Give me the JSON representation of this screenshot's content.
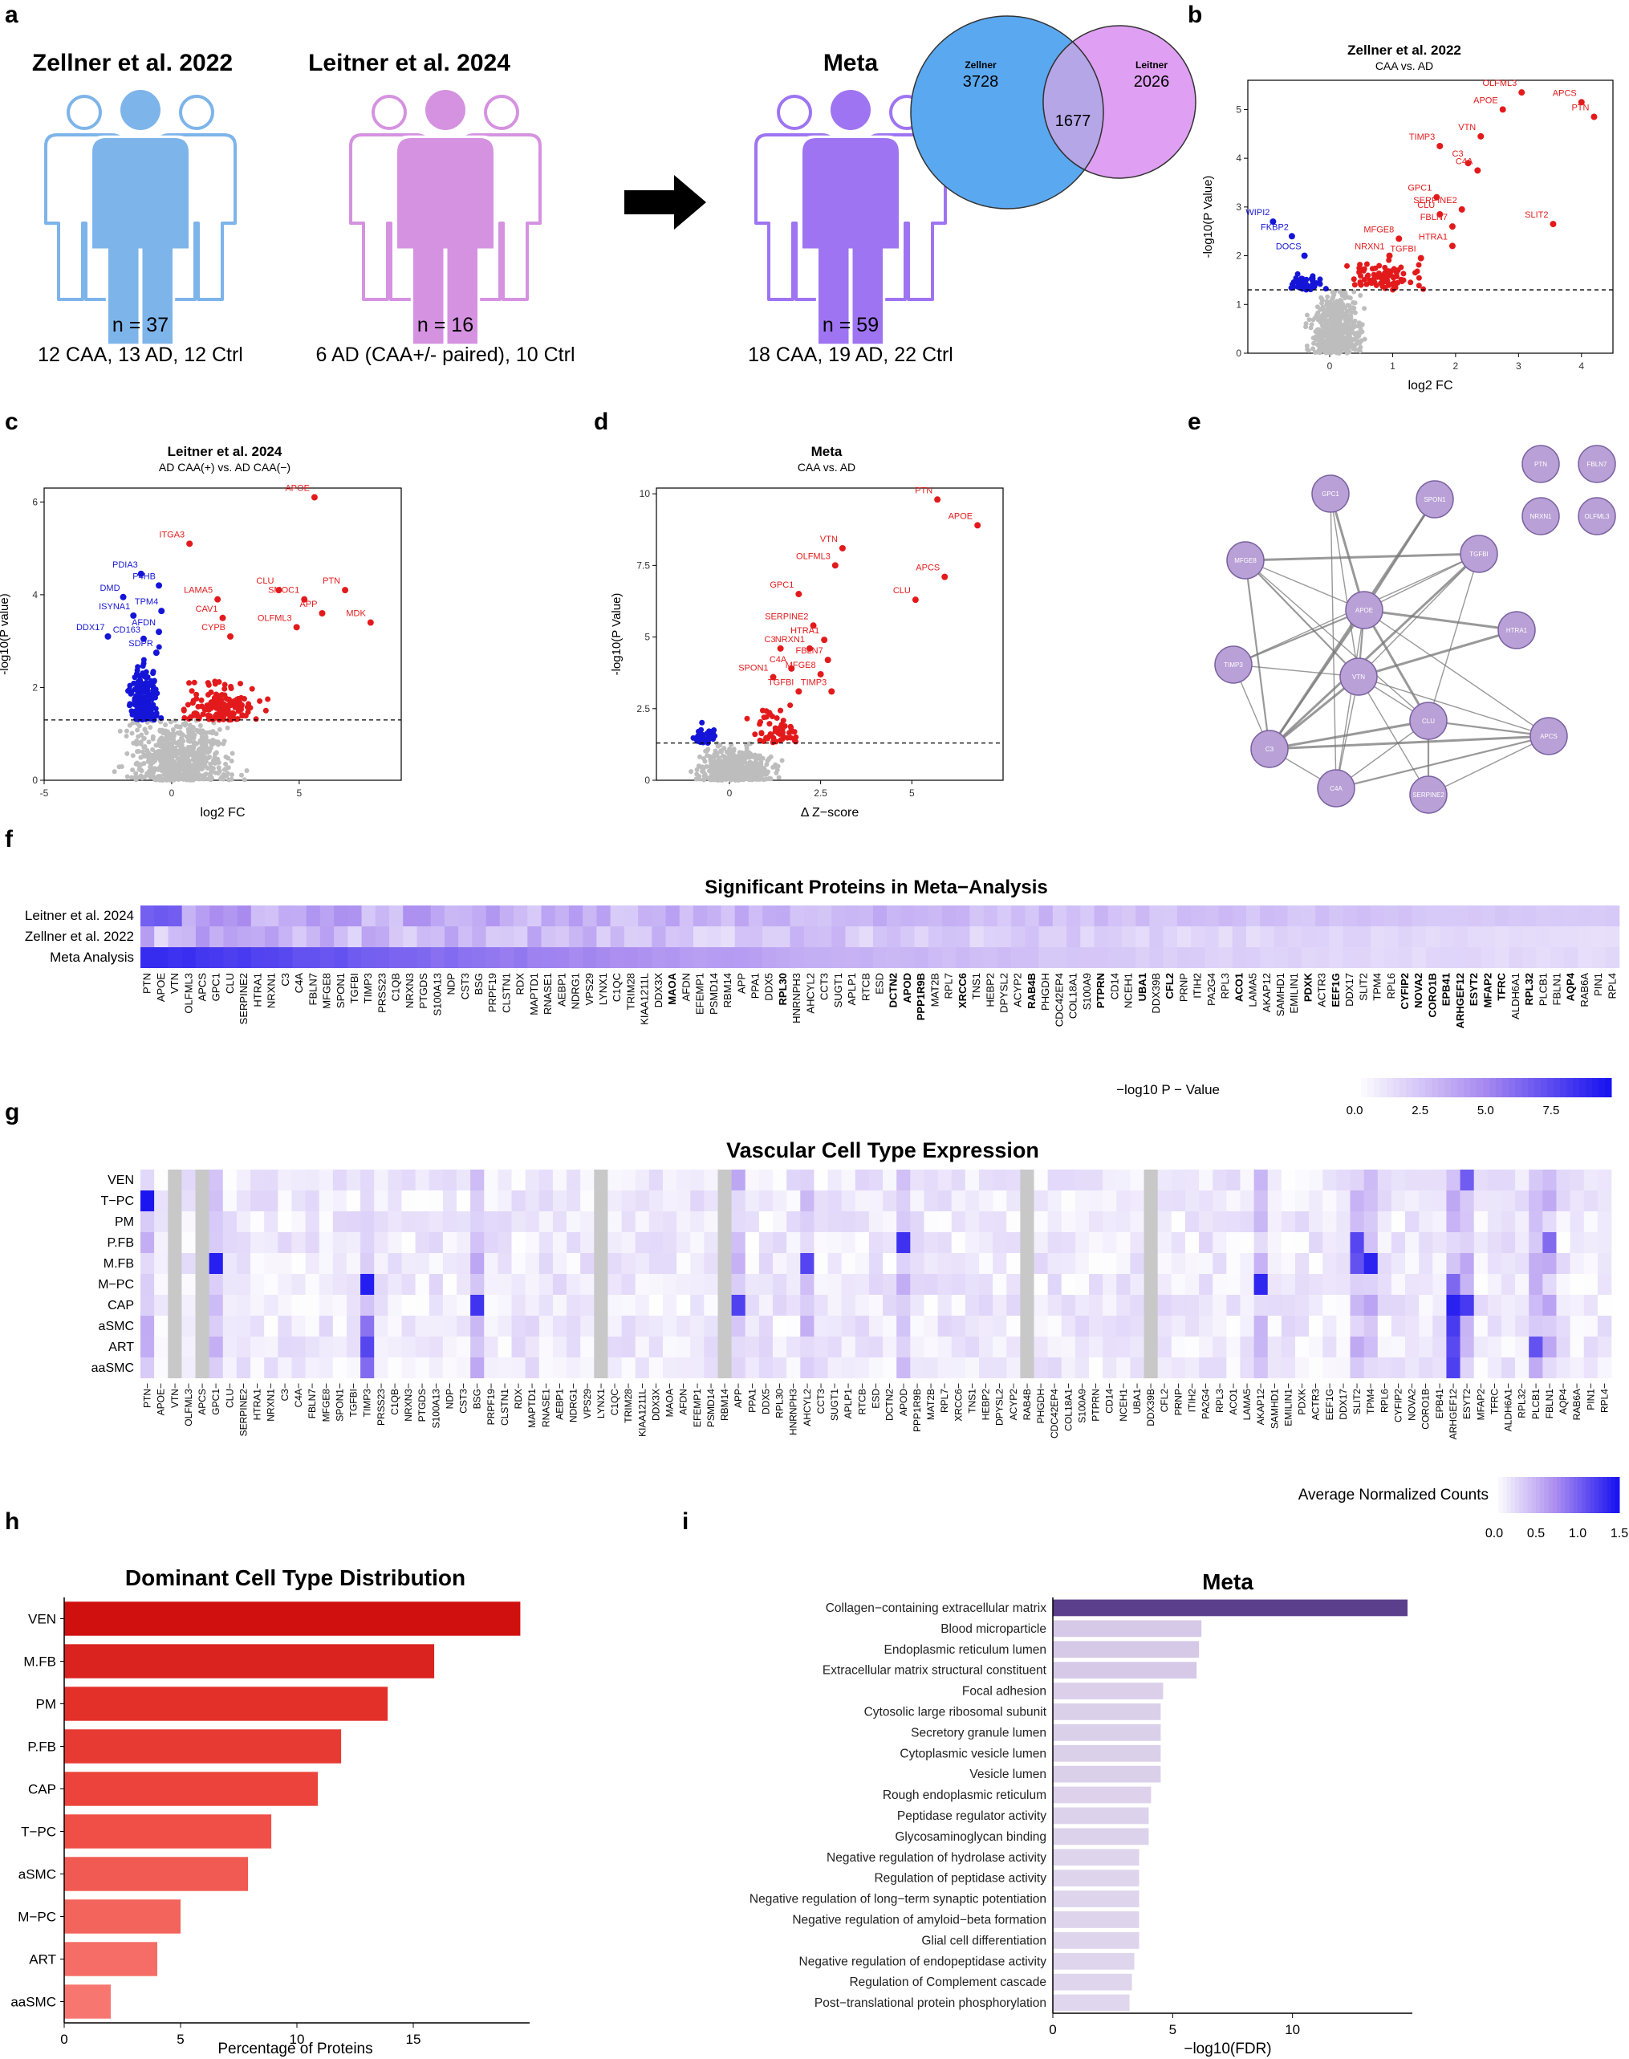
{
  "panel_letters": [
    "a",
    "b",
    "c",
    "d",
    "e",
    "f",
    "g",
    "h",
    "i"
  ],
  "panel_a": {
    "cohorts": [
      {
        "title": "Zellner et al. 2022",
        "n": "n = 37",
        "breakdown": "12 CAA, 13 AD, 12 Ctrl",
        "color": "#7db4ea"
      },
      {
        "title": "Leitner et al. 2024",
        "n": "n = 16",
        "breakdown": "6 AD (CAA+/- paired), 10 Ctrl",
        "color": "#d592e0"
      },
      {
        "title": "Meta",
        "n": "n = 59",
        "breakdown": "18 CAA, 19 AD, 22 Ctrl",
        "color": "#9e74f2"
      }
    ],
    "venn": {
      "left_label": "Zellner",
      "left_count": "3728",
      "overlap": "1677",
      "right_label": "Leitner",
      "right_count": "2026"
    }
  },
  "chart_data": [
    {
      "id": "b",
      "type": "scatter",
      "title": "Zellner et al. 2022",
      "subtitle": "CAA vs. AD",
      "xlabel": "log2 FC",
      "ylabel": "-log10(P Value)",
      "xlim": [
        -1.3,
        4.5
      ],
      "ylim": [
        0,
        5.6
      ],
      "xticks": [
        0,
        1,
        2,
        3,
        4
      ],
      "yticks": [
        0,
        1,
        2,
        3,
        4,
        5
      ],
      "threshold": 1.3,
      "points": [
        {
          "label": "APCS",
          "x": 4.0,
          "y": 5.15,
          "side": "up"
        },
        {
          "label": "OLFML3",
          "x": 3.05,
          "y": 5.35,
          "side": "up"
        },
        {
          "label": "PTN",
          "x": 4.2,
          "y": 4.85,
          "side": "up"
        },
        {
          "label": "APOE",
          "x": 2.75,
          "y": 5.0,
          "side": "up"
        },
        {
          "label": "VTN",
          "x": 2.4,
          "y": 4.45,
          "side": "up"
        },
        {
          "label": "TIMP3",
          "x": 1.75,
          "y": 4.25,
          "side": "up"
        },
        {
          "label": "C3",
          "x": 2.2,
          "y": 3.9,
          "side": "up"
        },
        {
          "label": "C4A",
          "x": 2.35,
          "y": 3.75,
          "side": "up"
        },
        {
          "label": "GPC1",
          "x": 1.7,
          "y": 3.2,
          "side": "up"
        },
        {
          "label": "CLU",
          "x": 1.75,
          "y": 2.85,
          "side": "up"
        },
        {
          "label": "SERPINE2",
          "x": 2.1,
          "y": 2.95,
          "side": "up"
        },
        {
          "label": "MFGE8",
          "x": 1.1,
          "y": 2.35,
          "side": "up"
        },
        {
          "label": "FBLN7",
          "x": 1.95,
          "y": 2.6,
          "side": "up"
        },
        {
          "label": "NRXN1",
          "x": 0.95,
          "y": 2.0,
          "side": "up"
        },
        {
          "label": "TGFBI",
          "x": 1.45,
          "y": 1.95,
          "side": "up"
        },
        {
          "label": "HTRA1",
          "x": 1.95,
          "y": 2.2,
          "side": "up"
        },
        {
          "label": "SLIT2",
          "x": 3.55,
          "y": 2.65,
          "side": "up"
        },
        {
          "label": "WIPI2",
          "x": -0.9,
          "y": 2.7,
          "side": "down"
        },
        {
          "label": "FKBP2",
          "x": -0.6,
          "y": 2.4,
          "side": "down"
        },
        {
          "label": "DOCS",
          "x": -0.4,
          "y": 2.0,
          "side": "down"
        }
      ]
    },
    {
      "id": "c",
      "type": "scatter",
      "title": "Leitner et al. 2024",
      "subtitle": "AD CAA(+) vs. AD CAA(−)",
      "xlabel": "log2 FC",
      "ylabel": "-log10(P value)",
      "xlim": [
        -5,
        9
      ],
      "ylim": [
        0,
        6.3
      ],
      "xticks": [
        -5,
        0,
        5
      ],
      "yticks": [
        0,
        2,
        4,
        6
      ],
      "threshold": 1.3,
      "points": [
        {
          "label": "APOE",
          "x": 5.6,
          "y": 6.1,
          "side": "up"
        },
        {
          "label": "ITGA3",
          "x": 0.7,
          "y": 5.1,
          "side": "up"
        },
        {
          "label": "LAMA5",
          "x": 1.8,
          "y": 3.9,
          "side": "up"
        },
        {
          "label": "CLU",
          "x": 4.2,
          "y": 4.1,
          "side": "up"
        },
        {
          "label": "SMOC1",
          "x": 5.2,
          "y": 3.9,
          "side": "up"
        },
        {
          "label": "PTN",
          "x": 6.8,
          "y": 4.1,
          "side": "up"
        },
        {
          "label": "CAV1",
          "x": 2.0,
          "y": 3.5,
          "side": "up"
        },
        {
          "label": "APP",
          "x": 5.9,
          "y": 3.6,
          "side": "up"
        },
        {
          "label": "OLFML3",
          "x": 4.9,
          "y": 3.3,
          "side": "up"
        },
        {
          "label": "MDK",
          "x": 7.8,
          "y": 3.4,
          "side": "up"
        },
        {
          "label": "CYPB",
          "x": 2.3,
          "y": 3.1,
          "side": "up"
        },
        {
          "label": "PDIA3",
          "x": -1.2,
          "y": 4.45,
          "side": "down"
        },
        {
          "label": "P4HB",
          "x": -0.5,
          "y": 4.2,
          "side": "down"
        },
        {
          "label": "DMD",
          "x": -1.9,
          "y": 3.95,
          "side": "down"
        },
        {
          "label": "TPM4",
          "x": -0.4,
          "y": 3.65,
          "side": "down"
        },
        {
          "label": "ISYNA1",
          "x": -1.5,
          "y": 3.55,
          "side": "down"
        },
        {
          "label": "AFDN",
          "x": -0.5,
          "y": 3.2,
          "side": "down"
        },
        {
          "label": "DDX17",
          "x": -2.5,
          "y": 3.1,
          "side": "down"
        },
        {
          "label": "CD163",
          "x": -1.1,
          "y": 3.05,
          "side": "down"
        },
        {
          "label": "SDPR",
          "x": -0.6,
          "y": 2.75,
          "side": "down"
        }
      ]
    },
    {
      "id": "d",
      "type": "scatter",
      "title": "Meta",
      "subtitle": "CAA vs. AD",
      "xlabel": "Δ Z−score",
      "ylabel": "-log10(P Value)",
      "xlim": [
        -2,
        7.5
      ],
      "ylim": [
        0,
        10.2
      ],
      "xticks": [
        0,
        2.5,
        5
      ],
      "yticks": [
        0,
        2.5,
        5,
        7.5,
        10
      ],
      "threshold": 1.3,
      "points": [
        {
          "label": "PTN",
          "x": 5.7,
          "y": 9.8,
          "side": "up"
        },
        {
          "label": "APOE",
          "x": 6.8,
          "y": 8.9,
          "side": "up"
        },
        {
          "label": "VTN",
          "x": 3.1,
          "y": 8.1,
          "side": "up"
        },
        {
          "label": "OLFML3",
          "x": 2.9,
          "y": 7.5,
          "side": "up"
        },
        {
          "label": "APCS",
          "x": 5.9,
          "y": 7.1,
          "side": "up"
        },
        {
          "label": "GPC1",
          "x": 1.9,
          "y": 6.5,
          "side": "up"
        },
        {
          "label": "CLU",
          "x": 5.1,
          "y": 6.3,
          "side": "up"
        },
        {
          "label": "SERPINE2",
          "x": 2.3,
          "y": 5.4,
          "side": "up"
        },
        {
          "label": "HTRA1",
          "x": 2.6,
          "y": 4.9,
          "side": "up"
        },
        {
          "label": "C3",
          "x": 1.4,
          "y": 4.6,
          "side": "up"
        },
        {
          "label": "NRXN1",
          "x": 2.2,
          "y": 4.6,
          "side": "up"
        },
        {
          "label": "FBLN7",
          "x": 2.7,
          "y": 4.2,
          "side": "up"
        },
        {
          "label": "C4A",
          "x": 1.7,
          "y": 3.9,
          "side": "up"
        },
        {
          "label": "SPON1",
          "x": 1.2,
          "y": 3.6,
          "side": "up"
        },
        {
          "label": "MFGE8",
          "x": 2.5,
          "y": 3.7,
          "side": "up"
        },
        {
          "label": "TGFBI",
          "x": 1.9,
          "y": 3.1,
          "side": "up"
        },
        {
          "label": "TIMP3",
          "x": 2.8,
          "y": 3.1,
          "side": "up"
        }
      ]
    },
    {
      "id": "f",
      "type": "heatmap",
      "title": "Significant Proteins in Meta−Analysis",
      "rows": [
        "Leitner et al. 2024",
        "Zellner et al. 2022",
        "Meta Analysis"
      ],
      "columns": [
        "PTN",
        "APOE",
        "VTN",
        "OLFML3",
        "APCS",
        "GPC1",
        "CLU",
        "SERPINE2",
        "HTRA1",
        "NRXN1",
        "C3",
        "C4A",
        "FBLN7",
        "MFGE8",
        "SPON1",
        "TGFBI",
        "TIMP3",
        "PRSS23",
        "C1QB",
        "NRXN3",
        "PTGDS",
        "S100A13",
        "NDP",
        "CST3",
        "BSG",
        "PRPF19",
        "CLSTN1",
        "RDX",
        "MAPTD1",
        "RNASE1",
        "AEBP1",
        "NDRG1",
        "VPS29",
        "LYNX1",
        "C1QC",
        "TRIM28",
        "KIAA1211L",
        "DDX3X",
        "MAOA",
        "AFDN",
        "EFEMP1",
        "PSMD14",
        "RBM14",
        "APP",
        "PPA1",
        "DDX5",
        "RPL30",
        "HNRNPH3",
        "AHCYL2",
        "CCT3",
        "SUGT1",
        "APLP1",
        "RTCB",
        "ESD",
        "DCTN2",
        "APOD",
        "PPP1R9B",
        "MAT2B",
        "RPL7",
        "XRCC6",
        "TNS1",
        "HEBP2",
        "DPYSL2",
        "ACYP2",
        "RAB4B",
        "PHGDH",
        "CDC42EP4",
        "COL18A1",
        "S100A9",
        "PTPRN",
        "CD14",
        "NCEH1",
        "UBA1",
        "DDX39B",
        "CFL2",
        "PRNP",
        "ITIH2",
        "PA2G4",
        "RPL3",
        "ACO1",
        "LAMA5",
        "AKAP12",
        "SAMHD1",
        "EMILIN1",
        "PDXK",
        "ACTR3",
        "EEF1G",
        "DDX17",
        "SLIT2",
        "TPM4",
        "RPL6",
        "CYFIP2",
        "NOVA2",
        "CORO1B",
        "EPB41",
        "ARHGEF12",
        "ESYT2",
        "MFAP2",
        "TFRC",
        "ALDH6A1",
        "RPL32",
        "PLCB1",
        "FBLN1",
        "AQP4",
        "RAB6A",
        "PIN1",
        "RPL4"
      ],
      "bold_columns": [
        "MAOA",
        "RPL30",
        "DCTN2",
        "APOD",
        "PPP1R9B",
        "XRCC6",
        "RAB4B",
        "PTPRN",
        "UBA1",
        "CFL2",
        "ACO1",
        "PDXK",
        "EEF1G",
        "CYFIP2",
        "NOVA2",
        "CORO1B",
        "EPB41",
        "ARHGEF12",
        "ESYT2",
        "MFAP2",
        "TFRC",
        "RPL32",
        "AQP4"
      ],
      "legend_title": "−log10 P − Value",
      "legend_ticks": [
        "0.0",
        "2.5",
        "5.0",
        "7.5"
      ],
      "range": [
        0,
        9.8
      ]
    },
    {
      "id": "g",
      "type": "heatmap",
      "title": "Vascular Cell Type Expression",
      "rows": [
        "VEN",
        "T−PC",
        "PM",
        "P.FB",
        "M.FB",
        "M−PC",
        "CAP",
        "aSMC",
        "ART",
        "aaSMC"
      ],
      "columns": [
        "PTN",
        "APOE",
        "VTN",
        "OLFML3",
        "APCS",
        "GPC1",
        "CLU",
        "SERPINE2",
        "HTRA1",
        "NRXN1",
        "C3",
        "C4A",
        "FBLN7",
        "MFGE8",
        "SPON1",
        "TGFBI",
        "TIMP3",
        "PRSS23",
        "C1QB",
        "NRXN3",
        "PTGDS",
        "S100A13",
        "NDP",
        "CST3",
        "BSG",
        "PRPF19",
        "CLSTN1",
        "RDX",
        "MAPTD1",
        "RNASE1",
        "AEBP1",
        "NDRG1",
        "VPS29",
        "LYNX1",
        "C1QC",
        "TRIM28",
        "KIAA1211L",
        "DDX3X",
        "MAOA",
        "AFDN",
        "EFEMP1",
        "PSMD14",
        "RBM14",
        "APP",
        "PPA1",
        "DDX5",
        "RPL30",
        "HNRNPH3",
        "AHCYL2",
        "CCT3",
        "SUGT1",
        "APLP1",
        "RTCB",
        "ESD",
        "DCTN2",
        "APOD",
        "PPP1R9B",
        "MAT2B",
        "RPL7",
        "XRCC6",
        "TNS1",
        "HEBP2",
        "DPYSL2",
        "ACYP2",
        "RAB4B",
        "PHGDH",
        "CDC42EP4",
        "COL18A1",
        "S100A9",
        "PTPRN",
        "CD14",
        "NCEH1",
        "UBA1",
        "DDX39B",
        "CFL2",
        "PRNP",
        "ITIH2",
        "PA2G4",
        "RPL3",
        "ACO1",
        "LAMA5",
        "AKAP12",
        "SAMHD1",
        "EMILIN1",
        "PDXK",
        "ACTR3",
        "EEF1G",
        "DDX17",
        "SLIT2",
        "TPM4",
        "RPL6",
        "CYFIP2",
        "NOVA2",
        "CORO1B",
        "EPB41",
        "ARHGEF12",
        "ESYT2",
        "MFAP2",
        "TFRC",
        "ALDH6A1",
        "RPL32",
        "PLCB1",
        "FBLN1",
        "AQP4",
        "RAB6A",
        "PIN1",
        "RPL4"
      ],
      "gray_columns": [
        "VTN",
        "APCS",
        "LYNX1",
        "RBM14",
        "RAB4B",
        "DDX39B"
      ],
      "legend_title": "Average Normalized Counts",
      "legend_ticks": [
        "0.0",
        "0.5",
        "1.0",
        "1.5"
      ],
      "range": [
        0,
        1.5
      ]
    },
    {
      "id": "h",
      "type": "bar",
      "title": "Dominant Cell Type Distribution",
      "orientation": "horizontal",
      "categories": [
        "VEN",
        "M.FB",
        "PM",
        "P.FB",
        "CAP",
        "T−PC",
        "aSMC",
        "M−PC",
        "ART",
        "aaSMC"
      ],
      "values": [
        19.6,
        15.9,
        13.9,
        11.9,
        10.9,
        8.9,
        7.9,
        5.0,
        4.0,
        2.0
      ],
      "xlabel": "Percentage of Proteins",
      "xlim": [
        0,
        20
      ],
      "xticks": [
        "0",
        "5",
        "10",
        "15"
      ]
    },
    {
      "id": "i",
      "type": "bar",
      "title": "Meta",
      "orientation": "horizontal",
      "categories": [
        "Collagen−containing extracellular matrix",
        "Blood microparticle",
        "Endoplasmic reticulum lumen",
        "Extracellular matrix structural constituent",
        "Focal adhesion",
        "Cytosolic large ribosomal subunit",
        "Secretory granule lumen",
        "Cytoplasmic vesicle lumen",
        "Vesicle lumen",
        "Rough endoplasmic reticulum",
        "Peptidase regulator activity",
        "Glycosaminoglycan binding",
        "Negative regulation of hydrolase activity",
        "Regulation of peptidase activity",
        "Negative regulation of long−term synaptic potentiation",
        "Negative regulation of amyloid−beta formation",
        "Glial cell differentiation",
        "Negative regulation of endopeptidase activity",
        "Regulation of Complement cascade",
        "Post−translational protein phosphorylation"
      ],
      "values": [
        14.8,
        6.2,
        6.1,
        6.0,
        4.6,
        4.5,
        4.5,
        4.5,
        4.5,
        4.1,
        4.0,
        4.0,
        3.6,
        3.6,
        3.6,
        3.6,
        3.6,
        3.4,
        3.3,
        3.2
      ],
      "xlabel": "−log10(FDR)",
      "xlim": [
        0,
        15
      ],
      "xticks": [
        "0",
        "5",
        "10"
      ]
    }
  ],
  "network_e": {
    "connected_nodes": [
      "GPC1",
      "SPON1",
      "MFGE8",
      "TGFBI",
      "APOE",
      "HTRA1",
      "TIMP3",
      "VTN",
      "CLU",
      "APCS",
      "C3",
      "C4A",
      "SERPINE2"
    ],
    "isolated_nodes": [
      "PTN",
      "FBLN7",
      "NRXN1",
      "OLFML3"
    ],
    "node_color": "#b9a0d6"
  }
}
